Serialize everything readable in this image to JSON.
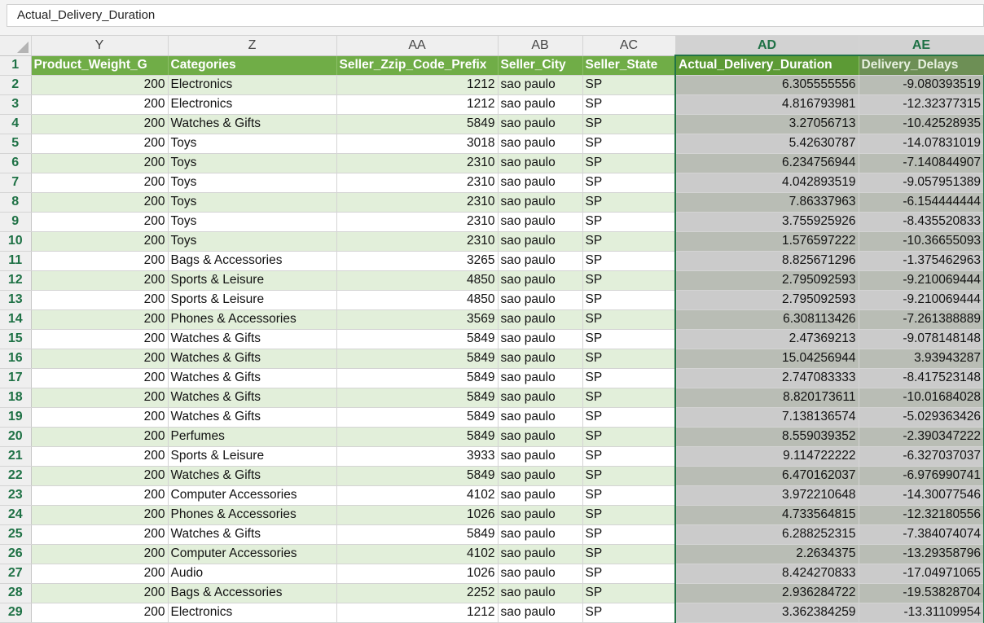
{
  "formula_bar": {
    "value": "Actual_Delivery_Duration"
  },
  "columns": [
    "Y",
    "Z",
    "AA",
    "AB",
    "AC",
    "AD",
    "AE"
  ],
  "headers": [
    "Product_Weight_G",
    "Categories",
    "Seller_Zzip_Code_Prefix",
    "Seller_City",
    "Seller_State",
    "Actual_Delivery_Duration",
    "Delivery_Delays"
  ],
  "rows": [
    {
      "n": "2",
      "w": "200",
      "cat": "Electronics",
      "zip": "1212",
      "city": "sao paulo",
      "st": "SP",
      "dur": "6.305555556",
      "del": "-9.080393519"
    },
    {
      "n": "3",
      "w": "200",
      "cat": "Electronics",
      "zip": "1212",
      "city": "sao paulo",
      "st": "SP",
      "dur": "4.816793981",
      "del": "-12.32377315"
    },
    {
      "n": "4",
      "w": "200",
      "cat": "Watches & Gifts",
      "zip": "5849",
      "city": "sao paulo",
      "st": "SP",
      "dur": "3.27056713",
      "del": "-10.42528935"
    },
    {
      "n": "5",
      "w": "200",
      "cat": "Toys",
      "zip": "3018",
      "city": "sao paulo",
      "st": "SP",
      "dur": "5.42630787",
      "del": "-14.07831019"
    },
    {
      "n": "6",
      "w": "200",
      "cat": "Toys",
      "zip": "2310",
      "city": "sao paulo",
      "st": "SP",
      "dur": "6.234756944",
      "del": "-7.140844907"
    },
    {
      "n": "7",
      "w": "200",
      "cat": "Toys",
      "zip": "2310",
      "city": "sao paulo",
      "st": "SP",
      "dur": "4.042893519",
      "del": "-9.057951389"
    },
    {
      "n": "8",
      "w": "200",
      "cat": "Toys",
      "zip": "2310",
      "city": "sao paulo",
      "st": "SP",
      "dur": "7.86337963",
      "del": "-6.154444444"
    },
    {
      "n": "9",
      "w": "200",
      "cat": "Toys",
      "zip": "2310",
      "city": "sao paulo",
      "st": "SP",
      "dur": "3.755925926",
      "del": "-8.435520833"
    },
    {
      "n": "10",
      "w": "200",
      "cat": "Toys",
      "zip": "2310",
      "city": "sao paulo",
      "st": "SP",
      "dur": "1.576597222",
      "del": "-10.36655093"
    },
    {
      "n": "11",
      "w": "200",
      "cat": "Bags & Accessories",
      "zip": "3265",
      "city": "sao paulo",
      "st": "SP",
      "dur": "8.825671296",
      "del": "-1.375462963"
    },
    {
      "n": "12",
      "w": "200",
      "cat": "Sports & Leisure",
      "zip": "4850",
      "city": "sao paulo",
      "st": "SP",
      "dur": "2.795092593",
      "del": "-9.210069444"
    },
    {
      "n": "13",
      "w": "200",
      "cat": "Sports & Leisure",
      "zip": "4850",
      "city": "sao paulo",
      "st": "SP",
      "dur": "2.795092593",
      "del": "-9.210069444"
    },
    {
      "n": "14",
      "w": "200",
      "cat": "Phones & Accessories",
      "zip": "3569",
      "city": "sao paulo",
      "st": "SP",
      "dur": "6.308113426",
      "del": "-7.261388889"
    },
    {
      "n": "15",
      "w": "200",
      "cat": "Watches & Gifts",
      "zip": "5849",
      "city": "sao paulo",
      "st": "SP",
      "dur": "2.47369213",
      "del": "-9.078148148"
    },
    {
      "n": "16",
      "w": "200",
      "cat": "Watches & Gifts",
      "zip": "5849",
      "city": "sao paulo",
      "st": "SP",
      "dur": "15.04256944",
      "del": "3.93943287"
    },
    {
      "n": "17",
      "w": "200",
      "cat": "Watches & Gifts",
      "zip": "5849",
      "city": "sao paulo",
      "st": "SP",
      "dur": "2.747083333",
      "del": "-8.417523148"
    },
    {
      "n": "18",
      "w": "200",
      "cat": "Watches & Gifts",
      "zip": "5849",
      "city": "sao paulo",
      "st": "SP",
      "dur": "8.820173611",
      "del": "-10.01684028"
    },
    {
      "n": "19",
      "w": "200",
      "cat": "Watches & Gifts",
      "zip": "5849",
      "city": "sao paulo",
      "st": "SP",
      "dur": "7.138136574",
      "del": "-5.029363426"
    },
    {
      "n": "20",
      "w": "200",
      "cat": "Perfumes",
      "zip": "5849",
      "city": "sao paulo",
      "st": "SP",
      "dur": "8.559039352",
      "del": "-2.390347222"
    },
    {
      "n": "21",
      "w": "200",
      "cat": "Sports & Leisure",
      "zip": "3933",
      "city": "sao paulo",
      "st": "SP",
      "dur": "9.114722222",
      "del": "-6.327037037"
    },
    {
      "n": "22",
      "w": "200",
      "cat": "Watches & Gifts",
      "zip": "5849",
      "city": "sao paulo",
      "st": "SP",
      "dur": "6.470162037",
      "del": "-6.976990741"
    },
    {
      "n": "23",
      "w": "200",
      "cat": "Computer Accessories",
      "zip": "4102",
      "city": "sao paulo",
      "st": "SP",
      "dur": "3.972210648",
      "del": "-14.30077546"
    },
    {
      "n": "24",
      "w": "200",
      "cat": "Phones & Accessories",
      "zip": "1026",
      "city": "sao paulo",
      "st": "SP",
      "dur": "4.733564815",
      "del": "-12.32180556"
    },
    {
      "n": "25",
      "w": "200",
      "cat": "Watches & Gifts",
      "zip": "5849",
      "city": "sao paulo",
      "st": "SP",
      "dur": "6.288252315",
      "del": "-7.384074074"
    },
    {
      "n": "26",
      "w": "200",
      "cat": "Computer Accessories",
      "zip": "4102",
      "city": "sao paulo",
      "st": "SP",
      "dur": "2.2634375",
      "del": "-13.29358796"
    },
    {
      "n": "27",
      "w": "200",
      "cat": "Audio",
      "zip": "1026",
      "city": "sao paulo",
      "st": "SP",
      "dur": "8.424270833",
      "del": "-17.04971065"
    },
    {
      "n": "28",
      "w": "200",
      "cat": "Bags & Accessories",
      "zip": "2252",
      "city": "sao paulo",
      "st": "SP",
      "dur": "2.936284722",
      "del": "-19.53828704"
    },
    {
      "n": "29",
      "w": "200",
      "cat": "Electronics",
      "zip": "1212",
      "city": "sao paulo",
      "st": "SP",
      "dur": "3.362384259",
      "del": "-13.31109954"
    }
  ],
  "header_row_number": "1",
  "colors": {
    "header_green": "#70ad47",
    "band_green": "#e2efda",
    "selection_green": "#217346"
  }
}
